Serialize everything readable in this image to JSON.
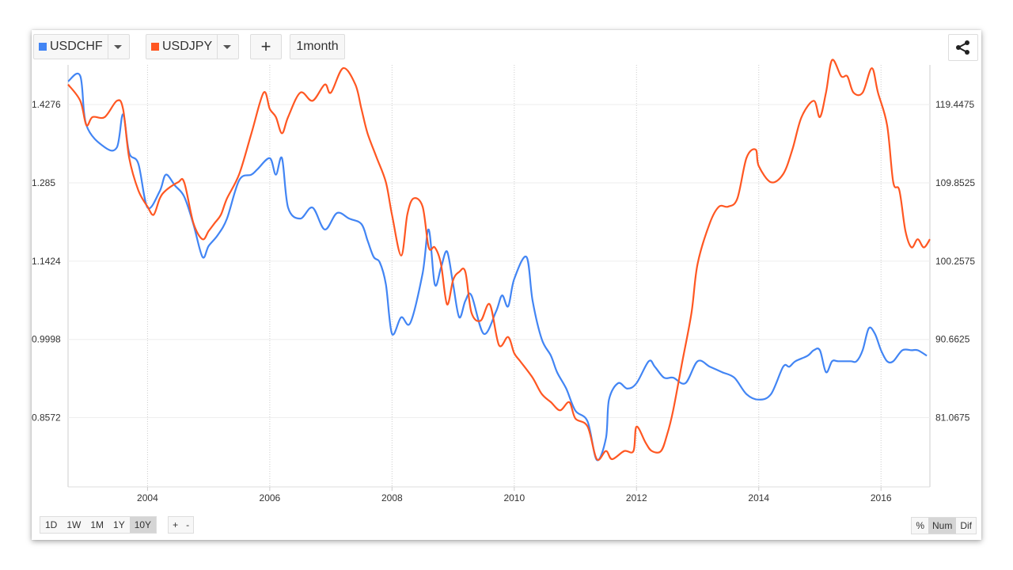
{
  "toolbar": {
    "series1": {
      "label": "USDCHF",
      "color": "#4285f4"
    },
    "series2": {
      "label": "USDJPY",
      "color": "#ff5722"
    },
    "add_label": "+",
    "interval_label": "1month",
    "share_icon": "share-icon",
    "dropdown_icon": "caret-down-icon"
  },
  "range_buttons": [
    "1D",
    "1W",
    "1M",
    "1Y",
    "10Y"
  ],
  "range_selected": "10Y",
  "zoom_buttons": [
    "+",
    "-"
  ],
  "mode_buttons": [
    "%",
    "Num",
    "Dif"
  ],
  "mode_selected": "Num",
  "chart_data": {
    "type": "line",
    "x_ticks": [
      "2004",
      "2006",
      "2008",
      "2010",
      "2012",
      "2014",
      "2016"
    ],
    "xlim": [
      2002.7,
      2016.8
    ],
    "left_axis": {
      "ticks": [
        "1.4276",
        "1.285",
        "1.1424",
        "0.9998",
        "0.8572"
      ],
      "ylim": [
        0.731,
        1.5
      ]
    },
    "right_axis": {
      "ticks": [
        "119.4475",
        "109.8525",
        "100.2575",
        "90.6625",
        "81.0675"
      ],
      "ylim": [
        72.6,
        124.4
      ]
    },
    "grid": true,
    "series": [
      {
        "axis": "left",
        "color": "#4285f4",
        "x": [
          2002.7,
          2002.9,
          2003.0,
          2003.3,
          2003.5,
          2003.6,
          2003.7,
          2003.85,
          2004.0,
          2004.2,
          2004.3,
          2004.45,
          2004.6,
          2004.75,
          2004.9,
          2005.0,
          2005.15,
          2005.3,
          2005.5,
          2005.7,
          2005.8,
          2006.0,
          2006.1,
          2006.2,
          2006.3,
          2006.5,
          2006.7,
          2006.9,
          2007.1,
          2007.3,
          2007.5,
          2007.6,
          2007.7,
          2007.8,
          2007.9,
          2008.0,
          2008.15,
          2008.3,
          2008.5,
          2008.6,
          2008.7,
          2008.8,
          2008.9,
          2009.0,
          2009.1,
          2009.2,
          2009.3,
          2009.5,
          2009.7,
          2009.8,
          2009.9,
          2010.0,
          2010.2,
          2010.3,
          2010.45,
          2010.6,
          2010.7,
          2010.85,
          2011.0,
          2011.2,
          2011.35,
          2011.5,
          2011.55,
          2011.7,
          2011.85,
          2012.0,
          2012.2,
          2012.3,
          2012.45,
          2012.6,
          2012.8,
          2013.0,
          2013.2,
          2013.4,
          2013.6,
          2013.8,
          2014.0,
          2014.2,
          2014.4,
          2014.5,
          2014.6,
          2014.8,
          2014.9,
          2015.0,
          2015.1,
          2015.2,
          2015.3,
          2015.5,
          2015.6,
          2015.7,
          2015.8,
          2015.9,
          2016.0,
          2016.1,
          2016.2,
          2016.35,
          2016.5,
          2016.6,
          2016.75
        ],
        "y": [
          1.47,
          1.48,
          1.39,
          1.35,
          1.35,
          1.41,
          1.34,
          1.32,
          1.24,
          1.27,
          1.3,
          1.28,
          1.26,
          1.21,
          1.15,
          1.17,
          1.19,
          1.22,
          1.29,
          1.3,
          1.31,
          1.33,
          1.3,
          1.33,
          1.24,
          1.22,
          1.24,
          1.2,
          1.23,
          1.22,
          1.21,
          1.18,
          1.15,
          1.14,
          1.1,
          1.01,
          1.04,
          1.03,
          1.12,
          1.2,
          1.1,
          1.13,
          1.16,
          1.1,
          1.04,
          1.07,
          1.08,
          1.01,
          1.05,
          1.08,
          1.06,
          1.11,
          1.15,
          1.07,
          1.0,
          0.97,
          0.94,
          0.91,
          0.87,
          0.85,
          0.78,
          0.82,
          0.89,
          0.92,
          0.91,
          0.92,
          0.96,
          0.95,
          0.93,
          0.93,
          0.92,
          0.96,
          0.95,
          0.94,
          0.93,
          0.9,
          0.89,
          0.9,
          0.95,
          0.95,
          0.96,
          0.97,
          0.98,
          0.98,
          0.94,
          0.96,
          0.96,
          0.96,
          0.96,
          0.98,
          1.02,
          1.01,
          0.98,
          0.96,
          0.96,
          0.98,
          0.98,
          0.98,
          0.97
        ]
      },
      {
        "axis": "right",
        "color": "#ff5722",
        "x": [
          2002.7,
          2002.9,
          2003.0,
          2003.1,
          2003.3,
          2003.5,
          2003.6,
          2003.7,
          2003.85,
          2004.0,
          2004.1,
          2004.2,
          2004.3,
          2004.5,
          2004.6,
          2004.75,
          2004.9,
          2005.0,
          2005.1,
          2005.2,
          2005.3,
          2005.5,
          2005.7,
          2005.9,
          2006.0,
          2006.1,
          2006.2,
          2006.3,
          2006.5,
          2006.7,
          2006.9,
          2007.0,
          2007.2,
          2007.4,
          2007.5,
          2007.6,
          2007.75,
          2007.9,
          2008.0,
          2008.15,
          2008.25,
          2008.35,
          2008.5,
          2008.6,
          2008.7,
          2008.8,
          2008.9,
          2009.0,
          2009.1,
          2009.2,
          2009.3,
          2009.45,
          2009.6,
          2009.75,
          2009.9,
          2010.0,
          2010.1,
          2010.3,
          2010.45,
          2010.6,
          2010.75,
          2010.9,
          2011.0,
          2011.2,
          2011.35,
          2011.5,
          2011.6,
          2011.8,
          2011.95,
          2012.0,
          2012.15,
          2012.25,
          2012.4,
          2012.5,
          2012.6,
          2012.75,
          2012.9,
          2013.0,
          2013.2,
          2013.35,
          2013.5,
          2013.65,
          2013.8,
          2013.95,
          2014.0,
          2014.2,
          2014.4,
          2014.55,
          2014.7,
          2014.9,
          2015.0,
          2015.1,
          2015.2,
          2015.35,
          2015.45,
          2015.55,
          2015.7,
          2015.85,
          2015.95,
          2016.1,
          2016.2,
          2016.3,
          2016.4,
          2016.5,
          2016.6,
          2016.7,
          2016.8
        ],
        "y": [
          122,
          120,
          117,
          118,
          118,
          120,
          119,
          113,
          109,
          107,
          106,
          108,
          109,
          110,
          110,
          105,
          103,
          104,
          105,
          106,
          108,
          111,
          116,
          121,
          119,
          118,
          116,
          118,
          121,
          120,
          122,
          121,
          124,
          122,
          119,
          116,
          113,
          110,
          106,
          101,
          106,
          108,
          107,
          102,
          102,
          100,
          95,
          98,
          99,
          99,
          94,
          93,
          95,
          90,
          91,
          89,
          88,
          86,
          84,
          83,
          82,
          83,
          81,
          80,
          76,
          77,
          76,
          77,
          77,
          80,
          78,
          77,
          77,
          79,
          82,
          88,
          94,
          100,
          105,
          107,
          107,
          108,
          113,
          114,
          112,
          110,
          111,
          114,
          118,
          120,
          118,
          121,
          125,
          123,
          123,
          121,
          121,
          124,
          121,
          117,
          110,
          109,
          104,
          102,
          103,
          102,
          103
        ]
      }
    ]
  }
}
